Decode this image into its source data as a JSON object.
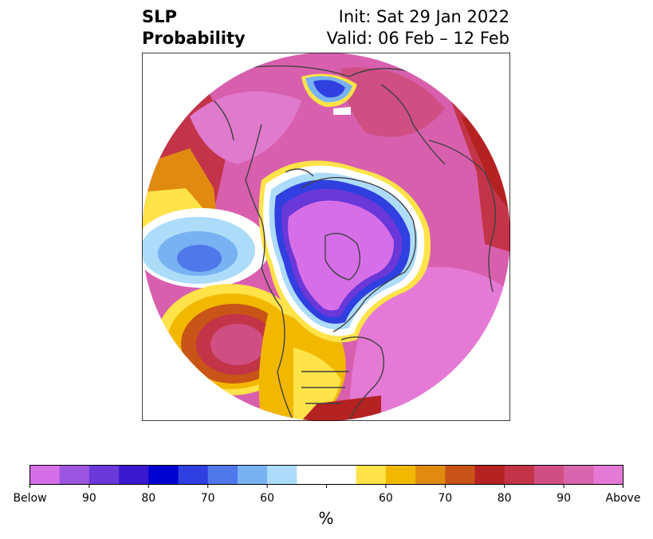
{
  "header": {
    "left_line1": "SLP",
    "left_line2": "Probability",
    "right_line1": "Init: Sat 29 Jan 2022",
    "right_line2": "Valid: 06 Feb – 12 Feb"
  },
  "colorbar": {
    "unit": "%",
    "labels": [
      "Below",
      "90",
      "80",
      "70",
      "60",
      "60",
      "70",
      "80",
      "90",
      "Above"
    ],
    "colors": [
      "#d66ee8",
      "#9b55e0",
      "#6a37d8",
      "#3a18d0",
      "#0000d0",
      "#2f3fe0",
      "#4f78ea",
      "#78b2f2",
      "#acdcfa",
      "#ffffff",
      "#ffffff",
      "#ffe348",
      "#f2b800",
      "#e08a10",
      "#c85418",
      "#b52222",
      "#c33448",
      "#cf4f82",
      "#d765ad",
      "#e57ad6"
    ]
  },
  "map": {
    "projection": "north-polar-stereographic",
    "features": [
      "coastlines",
      "country-borders",
      "us-state-lines"
    ]
  }
}
